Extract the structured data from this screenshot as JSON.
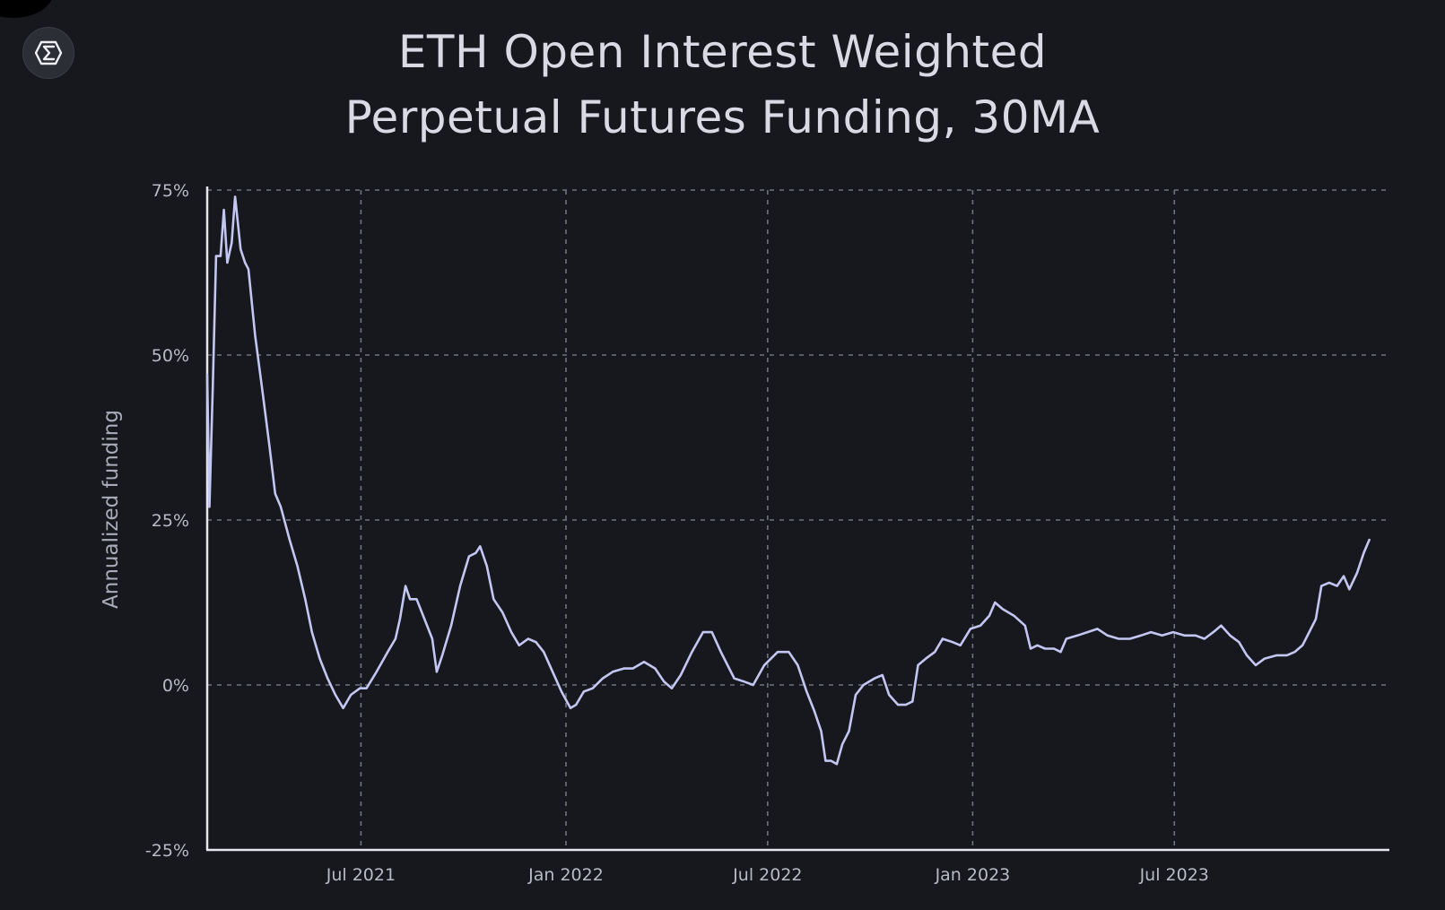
{
  "colors": {
    "background": "#16181d",
    "line": "#c4c6f2",
    "grid": "#6f7280",
    "axis": "#e6e7ee",
    "text": "#b8bac6"
  },
  "logo": {
    "icon": "sigma-hexagon-icon"
  },
  "chart_data": {
    "type": "line",
    "title_line1": "ETH Open Interest Weighted",
    "title_line2": "Perpetual Futures Funding, 30MA",
    "xlabel": "",
    "ylabel": "Annualized funding",
    "ylim": [
      -25,
      75
    ],
    "xlim": [
      "2021-02-13",
      "2024-01-10"
    ],
    "yticks": [
      {
        "value": 75,
        "label": "75%"
      },
      {
        "value": 50,
        "label": "50%"
      },
      {
        "value": 25,
        "label": "25%"
      },
      {
        "value": 0,
        "label": "0%"
      },
      {
        "value": -25,
        "label": "-25%"
      }
    ],
    "xticks": [
      {
        "value": "2021-07-01",
        "label": "Jul 2021"
      },
      {
        "value": "2022-01-01",
        "label": "Jan 2022"
      },
      {
        "value": "2022-07-01",
        "label": "Jul 2022"
      },
      {
        "value": "2023-01-01",
        "label": "Jan 2023"
      },
      {
        "value": "2023-07-01",
        "label": "Jul 2023"
      }
    ],
    "grid": true,
    "legend": "none",
    "series": [
      {
        "points": [
          [
            "2021-02-13",
            47
          ],
          [
            "2021-02-15",
            27
          ],
          [
            "2021-02-18",
            45
          ],
          [
            "2021-02-21",
            65
          ],
          [
            "2021-02-25",
            65
          ],
          [
            "2021-02-28",
            72
          ],
          [
            "2021-03-03",
            64
          ],
          [
            "2021-03-07",
            67
          ],
          [
            "2021-03-10",
            74
          ],
          [
            "2021-03-15",
            66
          ],
          [
            "2021-03-19",
            64
          ],
          [
            "2021-03-22",
            63
          ],
          [
            "2021-03-28",
            53
          ],
          [
            "2021-04-04",
            44
          ],
          [
            "2021-04-10",
            36
          ],
          [
            "2021-04-15",
            29
          ],
          [
            "2021-04-20",
            27
          ],
          [
            "2021-04-28",
            22
          ],
          [
            "2021-05-05",
            18
          ],
          [
            "2021-05-12",
            13
          ],
          [
            "2021-05-18",
            8
          ],
          [
            "2021-05-25",
            4
          ],
          [
            "2021-06-01",
            1
          ],
          [
            "2021-06-08",
            -1.5
          ],
          [
            "2021-06-15",
            -3.5
          ],
          [
            "2021-06-22",
            -1.5
          ],
          [
            "2021-06-30",
            -0.5
          ],
          [
            "2021-07-06",
            -0.5
          ],
          [
            "2021-07-15",
            2
          ],
          [
            "2021-07-25",
            5
          ],
          [
            "2021-08-01",
            7
          ],
          [
            "2021-08-05",
            10
          ],
          [
            "2021-08-10",
            15
          ],
          [
            "2021-08-14",
            13
          ],
          [
            "2021-08-20",
            13
          ],
          [
            "2021-08-27",
            10
          ],
          [
            "2021-09-03",
            7
          ],
          [
            "2021-09-07",
            2
          ],
          [
            "2021-09-12",
            4.5
          ],
          [
            "2021-09-20",
            9
          ],
          [
            "2021-09-28",
            15
          ],
          [
            "2021-10-06",
            19.5
          ],
          [
            "2021-10-12",
            20
          ],
          [
            "2021-10-16",
            21
          ],
          [
            "2021-10-22",
            18
          ],
          [
            "2021-10-28",
            13
          ],
          [
            "2021-11-05",
            11
          ],
          [
            "2021-11-13",
            8
          ],
          [
            "2021-11-20",
            6
          ],
          [
            "2021-11-28",
            7
          ],
          [
            "2021-12-05",
            6.5
          ],
          [
            "2021-12-12",
            5
          ],
          [
            "2021-12-20",
            2
          ],
          [
            "2021-12-28",
            -1
          ],
          [
            "2022-01-05",
            -3.5
          ],
          [
            "2022-01-10",
            -3
          ],
          [
            "2022-01-17",
            -1
          ],
          [
            "2022-01-25",
            -0.5
          ],
          [
            "2022-02-03",
            1
          ],
          [
            "2022-02-12",
            2
          ],
          [
            "2022-02-22",
            2.5
          ],
          [
            "2022-03-02",
            2.5
          ],
          [
            "2022-03-12",
            3.5
          ],
          [
            "2022-03-22",
            2.5
          ],
          [
            "2022-03-30",
            0.5
          ],
          [
            "2022-04-06",
            -0.5
          ],
          [
            "2022-04-14",
            1.5
          ],
          [
            "2022-04-24",
            5
          ],
          [
            "2022-05-04",
            8
          ],
          [
            "2022-05-12",
            8
          ],
          [
            "2022-05-20",
            5
          ],
          [
            "2022-06-01",
            1
          ],
          [
            "2022-06-10",
            0.5
          ],
          [
            "2022-06-18",
            0
          ],
          [
            "2022-06-28",
            3
          ],
          [
            "2022-07-10",
            5
          ],
          [
            "2022-07-20",
            5
          ],
          [
            "2022-07-28",
            3
          ],
          [
            "2022-08-05",
            -1
          ],
          [
            "2022-08-12",
            -4
          ],
          [
            "2022-08-18",
            -7
          ],
          [
            "2022-08-22",
            -11.5
          ],
          [
            "2022-08-27",
            -11.5
          ],
          [
            "2022-09-01",
            -12
          ],
          [
            "2022-09-06",
            -9
          ],
          [
            "2022-09-12",
            -7
          ],
          [
            "2022-09-18",
            -1.5
          ],
          [
            "2022-09-25",
            0
          ],
          [
            "2022-10-05",
            1
          ],
          [
            "2022-10-12",
            1.5
          ],
          [
            "2022-10-18",
            -1.5
          ],
          [
            "2022-10-26",
            -3
          ],
          [
            "2022-11-02",
            -3
          ],
          [
            "2022-11-08",
            -2.5
          ],
          [
            "2022-11-13",
            3
          ],
          [
            "2022-11-20",
            4
          ],
          [
            "2022-11-28",
            5
          ],
          [
            "2022-12-05",
            7
          ],
          [
            "2022-12-14",
            6.5
          ],
          [
            "2022-12-21",
            6
          ],
          [
            "2022-12-30",
            8.5
          ],
          [
            "2023-01-08",
            9
          ],
          [
            "2023-01-16",
            10.5
          ],
          [
            "2023-01-21",
            12.5
          ],
          [
            "2023-01-28",
            11.5
          ],
          [
            "2023-02-07",
            10.5
          ],
          [
            "2023-02-17",
            9
          ],
          [
            "2023-02-22",
            5.5
          ],
          [
            "2023-02-28",
            6
          ],
          [
            "2023-03-07",
            5.5
          ],
          [
            "2023-03-15",
            5.5
          ],
          [
            "2023-03-21",
            5
          ],
          [
            "2023-03-26",
            7
          ],
          [
            "2023-04-05",
            7.5
          ],
          [
            "2023-04-14",
            8
          ],
          [
            "2023-04-23",
            8.5
          ],
          [
            "2023-05-02",
            7.5
          ],
          [
            "2023-05-12",
            7
          ],
          [
            "2023-05-22",
            7
          ],
          [
            "2023-06-01",
            7.5
          ],
          [
            "2023-06-10",
            8
          ],
          [
            "2023-06-20",
            7.5
          ],
          [
            "2023-06-30",
            8
          ],
          [
            "2023-07-10",
            7.5
          ],
          [
            "2023-07-20",
            7.5
          ],
          [
            "2023-07-28",
            7
          ],
          [
            "2023-08-05",
            8
          ],
          [
            "2023-08-12",
            9
          ],
          [
            "2023-08-20",
            7.5
          ],
          [
            "2023-08-28",
            6.5
          ],
          [
            "2023-09-04",
            4.5
          ],
          [
            "2023-09-12",
            3
          ],
          [
            "2023-09-20",
            4
          ],
          [
            "2023-10-01",
            4.5
          ],
          [
            "2023-10-10",
            4.5
          ],
          [
            "2023-10-17",
            5
          ],
          [
            "2023-10-24",
            6
          ],
          [
            "2023-10-30",
            8
          ],
          [
            "2023-11-05",
            10
          ],
          [
            "2023-11-10",
            15
          ],
          [
            "2023-11-17",
            15.5
          ],
          [
            "2023-11-24",
            15
          ],
          [
            "2023-11-30",
            16.5
          ],
          [
            "2023-12-05",
            14.5
          ],
          [
            "2023-12-12",
            17
          ],
          [
            "2023-12-18",
            20
          ],
          [
            "2023-12-23",
            22
          ]
        ]
      }
    ]
  }
}
